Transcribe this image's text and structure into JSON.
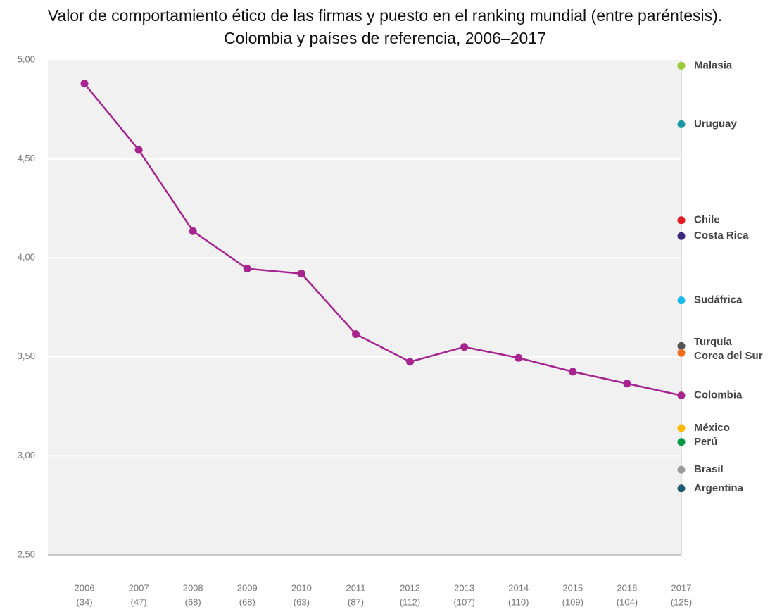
{
  "chart_data": {
    "type": "line",
    "title": "Valor de comportamiento ético de las firmas y puesto en el ranking mundial (entre paréntesis). Colombia y países de referencia, 2006–2017",
    "categories": [
      "2006",
      "2007",
      "2008",
      "2009",
      "2010",
      "2011",
      "2012",
      "2013",
      "2014",
      "2015",
      "2016",
      "2017"
    ],
    "rankings": [
      "(34)",
      "(47)",
      "(68)",
      "(68)",
      "(63)",
      "(87)",
      "(112)",
      "(107)",
      "(110)",
      "(109)",
      "(104)",
      "(125)"
    ],
    "series": [
      {
        "name": "Colombia",
        "color": "#a7238f",
        "values": [
          4.88,
          4.545,
          4.135,
          3.945,
          3.92,
          3.615,
          3.475,
          3.55,
          3.495,
          3.425,
          3.365,
          3.305
        ]
      }
    ],
    "reference": [
      {
        "name": "Malasia",
        "color": "#9bc93a",
        "value": 4.97
      },
      {
        "name": "Uruguay",
        "color": "#1a9aa0",
        "value": 4.675
      },
      {
        "name": "Chile",
        "color": "#e31b23",
        "value": 4.19
      },
      {
        "name": "Costa Rica",
        "color": "#3d2a7d",
        "value": 4.11
      },
      {
        "name": "Sudáfrica",
        "color": "#1ab7ea",
        "value": 3.785
      },
      {
        "name": "Turquía",
        "color": "#555555",
        "value": 3.555
      },
      {
        "name": "Corea del Sur",
        "color": "#f26b1d",
        "value": 3.52
      },
      {
        "name": "México",
        "color": "#fbb900",
        "value": 3.14
      },
      {
        "name": "Perú",
        "color": "#009a44",
        "value": 3.07
      },
      {
        "name": "Brasil",
        "color": "#9b9b9b",
        "value": 2.93
      },
      {
        "name": "Argentina",
        "color": "#1d5b6e",
        "value": 2.835
      }
    ],
    "ylim": [
      2.5,
      5.0
    ],
    "yticks": [
      {
        "value": 2.5,
        "label": "2,50"
      },
      {
        "value": 3.0,
        "label": "3,00"
      },
      {
        "value": 3.5,
        "label": "3,50"
      },
      {
        "value": 4.0,
        "label": "4,00"
      },
      {
        "value": 4.5,
        "label": "4,50"
      },
      {
        "value": 5.0,
        "label": "5,00"
      }
    ],
    "grid": true
  }
}
